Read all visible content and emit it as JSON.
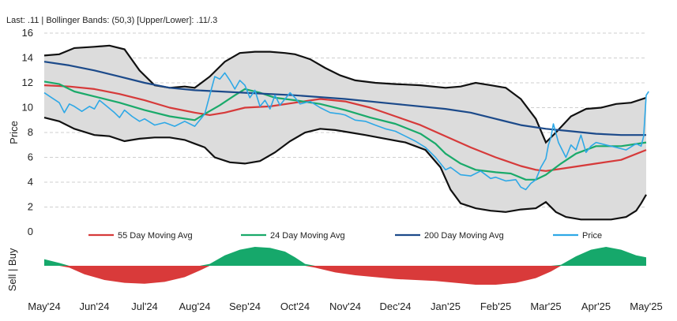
{
  "header": {
    "text": "Last: .11 | Bollinger Bands: (50,3) [Upper/Lower]: .11/.3"
  },
  "chart_data": {
    "type": "line",
    "ylabel": "Price",
    "signal_label": "Sell | Buy",
    "ylim": [
      0,
      16
    ],
    "yticks": [
      0,
      2,
      4,
      6,
      8,
      10,
      12,
      14,
      16
    ],
    "grid": "horizontal dashed",
    "legend_position": "bottom",
    "x_range": [
      0,
      12
    ],
    "x_tick_labels": [
      "May'24",
      "Jun'24",
      "Jul'24",
      "Aug'24",
      "Sep'24",
      "Oct'24",
      "Nov'24",
      "Dec'24",
      "Jan'25",
      "Feb'25",
      "Mar'25",
      "Apr'25",
      "May'25"
    ],
    "x_ticks": [
      0,
      1,
      2,
      3,
      4,
      5,
      6,
      7,
      8,
      9,
      10,
      11,
      12
    ],
    "series": [
      {
        "name": "55 Day Moving Avg",
        "color": "#d63a3a",
        "points": [
          [
            0,
            11.8
          ],
          [
            0.5,
            11.7
          ],
          [
            1,
            11.5
          ],
          [
            1.5,
            11.1
          ],
          [
            2,
            10.6
          ],
          [
            2.5,
            10.0
          ],
          [
            3,
            9.6
          ],
          [
            3.3,
            9.4
          ],
          [
            3.6,
            9.6
          ],
          [
            4,
            10.0
          ],
          [
            4.5,
            10.1
          ],
          [
            5,
            10.4
          ],
          [
            5.5,
            10.7
          ],
          [
            6,
            10.5
          ],
          [
            6.5,
            10.0
          ],
          [
            7,
            9.3
          ],
          [
            7.5,
            8.6
          ],
          [
            8,
            7.7
          ],
          [
            8.5,
            6.8
          ],
          [
            9,
            6.0
          ],
          [
            9.5,
            5.3
          ],
          [
            9.8,
            5.0
          ],
          [
            10,
            4.9
          ],
          [
            10.5,
            5.2
          ],
          [
            11,
            5.5
          ],
          [
            11.5,
            5.8
          ],
          [
            12,
            6.6
          ]
        ]
      },
      {
        "name": "24 Day Moving Avg",
        "color": "#1aaa6a",
        "points": [
          [
            0,
            12.1
          ],
          [
            0.3,
            11.9
          ],
          [
            0.6,
            11.3
          ],
          [
            1,
            10.9
          ],
          [
            1.5,
            10.4
          ],
          [
            2,
            9.8
          ],
          [
            2.5,
            9.3
          ],
          [
            3,
            9.0
          ],
          [
            3.2,
            9.5
          ],
          [
            3.5,
            10.2
          ],
          [
            3.8,
            11.0
          ],
          [
            4,
            11.5
          ],
          [
            4.3,
            11.2
          ],
          [
            4.6,
            10.8
          ],
          [
            5,
            10.6
          ],
          [
            5.5,
            10.3
          ],
          [
            6,
            9.8
          ],
          [
            6.5,
            9.2
          ],
          [
            7,
            8.7
          ],
          [
            7.5,
            7.9
          ],
          [
            7.8,
            7.1
          ],
          [
            8,
            6.3
          ],
          [
            8.3,
            5.5
          ],
          [
            8.6,
            5.0
          ],
          [
            9,
            4.8
          ],
          [
            9.3,
            4.7
          ],
          [
            9.6,
            4.2
          ],
          [
            9.8,
            4.2
          ],
          [
            10,
            4.6
          ],
          [
            10.3,
            5.5
          ],
          [
            10.6,
            6.3
          ],
          [
            11,
            6.9
          ],
          [
            11.5,
            6.9
          ],
          [
            12,
            7.2
          ]
        ]
      },
      {
        "name": "200 Day Moving Avg",
        "color": "#1c4a8a",
        "points": [
          [
            0,
            13.7
          ],
          [
            0.5,
            13.4
          ],
          [
            1,
            13.0
          ],
          [
            1.5,
            12.5
          ],
          [
            2,
            12.0
          ],
          [
            2.5,
            11.6
          ],
          [
            3,
            11.4
          ],
          [
            4,
            11.2
          ],
          [
            5,
            11.0
          ],
          [
            6,
            10.7
          ],
          [
            7,
            10.3
          ],
          [
            8,
            9.9
          ],
          [
            8.5,
            9.6
          ],
          [
            9,
            9.1
          ],
          [
            9.5,
            8.6
          ],
          [
            10,
            8.3
          ],
          [
            10.5,
            8.1
          ],
          [
            11,
            7.9
          ],
          [
            11.5,
            7.8
          ],
          [
            12,
            7.8
          ]
        ]
      },
      {
        "name": "Price",
        "color": "#2ea8e6",
        "points": [
          [
            0,
            11.2
          ],
          [
            0.15,
            10.8
          ],
          [
            0.3,
            10.4
          ],
          [
            0.4,
            9.6
          ],
          [
            0.5,
            10.3
          ],
          [
            0.6,
            10.1
          ],
          [
            0.75,
            9.7
          ],
          [
            0.9,
            10.1
          ],
          [
            1,
            9.9
          ],
          [
            1.1,
            10.6
          ],
          [
            1.25,
            10.1
          ],
          [
            1.4,
            9.6
          ],
          [
            1.5,
            9.2
          ],
          [
            1.6,
            9.8
          ],
          [
            1.75,
            9.3
          ],
          [
            1.9,
            8.9
          ],
          [
            2,
            9.1
          ],
          [
            2.2,
            8.6
          ],
          [
            2.4,
            8.8
          ],
          [
            2.6,
            8.5
          ],
          [
            2.8,
            8.9
          ],
          [
            3,
            8.5
          ],
          [
            3.1,
            9.0
          ],
          [
            3.2,
            9.5
          ],
          [
            3.3,
            11.0
          ],
          [
            3.4,
            12.5
          ],
          [
            3.5,
            12.3
          ],
          [
            3.6,
            12.8
          ],
          [
            3.7,
            12.2
          ],
          [
            3.8,
            11.5
          ],
          [
            3.9,
            12.2
          ],
          [
            4,
            11.8
          ],
          [
            4.1,
            10.8
          ],
          [
            4.2,
            11.4
          ],
          [
            4.3,
            10.1
          ],
          [
            4.4,
            10.6
          ],
          [
            4.5,
            9.9
          ],
          [
            4.6,
            11.0
          ],
          [
            4.7,
            10.2
          ],
          [
            4.8,
            10.7
          ],
          [
            4.9,
            11.2
          ],
          [
            5,
            10.8
          ],
          [
            5.1,
            10.3
          ],
          [
            5.3,
            10.5
          ],
          [
            5.5,
            10.0
          ],
          [
            5.7,
            9.6
          ],
          [
            5.9,
            9.5
          ],
          [
            6,
            9.4
          ],
          [
            6.2,
            9.0
          ],
          [
            6.4,
            8.9
          ],
          [
            6.6,
            8.6
          ],
          [
            6.8,
            8.3
          ],
          [
            7,
            8.1
          ],
          [
            7.2,
            7.7
          ],
          [
            7.4,
            7.3
          ],
          [
            7.6,
            6.8
          ],
          [
            7.8,
            6.0
          ],
          [
            8,
            5.0
          ],
          [
            8.1,
            5.2
          ],
          [
            8.3,
            4.6
          ],
          [
            8.5,
            4.5
          ],
          [
            8.7,
            4.9
          ],
          [
            8.9,
            4.3
          ],
          [
            9,
            4.4
          ],
          [
            9.2,
            4.1
          ],
          [
            9.4,
            4.2
          ],
          [
            9.5,
            3.6
          ],
          [
            9.6,
            3.4
          ],
          [
            9.7,
            3.9
          ],
          [
            9.8,
            4.2
          ],
          [
            9.9,
            5.2
          ],
          [
            10,
            5.9
          ],
          [
            10.05,
            7.0
          ],
          [
            10.1,
            7.6
          ],
          [
            10.15,
            8.7
          ],
          [
            10.25,
            7.2
          ],
          [
            10.4,
            6.0
          ],
          [
            10.5,
            7.0
          ],
          [
            10.6,
            6.6
          ],
          [
            10.7,
            7.8
          ],
          [
            10.8,
            6.4
          ],
          [
            10.9,
            6.9
          ],
          [
            11,
            7.2
          ],
          [
            11.2,
            7.0
          ],
          [
            11.4,
            6.8
          ],
          [
            11.6,
            6.6
          ],
          [
            11.8,
            7.1
          ],
          [
            11.9,
            6.9
          ],
          [
            11.95,
            7.7
          ],
          [
            12,
            11.0
          ],
          [
            12.05,
            11.3
          ]
        ]
      }
    ],
    "bands": {
      "upper": [
        [
          0,
          14.2
        ],
        [
          0.3,
          14.3
        ],
        [
          0.6,
          14.8
        ],
        [
          1,
          14.9
        ],
        [
          1.3,
          15.0
        ],
        [
          1.6,
          14.7
        ],
        [
          1.9,
          13.0
        ],
        [
          2.2,
          11.8
        ],
        [
          2.5,
          11.6
        ],
        [
          2.8,
          11.7
        ],
        [
          3,
          11.6
        ],
        [
          3.3,
          12.5
        ],
        [
          3.6,
          13.7
        ],
        [
          3.9,
          14.4
        ],
        [
          4.2,
          14.5
        ],
        [
          4.5,
          14.5
        ],
        [
          4.8,
          14.4
        ],
        [
          5,
          14.3
        ],
        [
          5.3,
          13.9
        ],
        [
          5.6,
          13.2
        ],
        [
          5.9,
          12.6
        ],
        [
          6.2,
          12.2
        ],
        [
          6.6,
          12.0
        ],
        [
          7,
          11.9
        ],
        [
          7.5,
          11.8
        ],
        [
          8,
          11.6
        ],
        [
          8.3,
          11.7
        ],
        [
          8.6,
          12.0
        ],
        [
          8.9,
          11.8
        ],
        [
          9.2,
          11.6
        ],
        [
          9.5,
          10.7
        ],
        [
          9.8,
          9.1
        ],
        [
          10,
          7.2
        ],
        [
          10.2,
          8.0
        ],
        [
          10.5,
          9.3
        ],
        [
          10.8,
          9.9
        ],
        [
          11.1,
          10.0
        ],
        [
          11.4,
          10.3
        ],
        [
          11.7,
          10.4
        ],
        [
          12,
          10.8
        ]
      ],
      "lower": [
        [
          0,
          9.2
        ],
        [
          0.3,
          8.9
        ],
        [
          0.6,
          8.3
        ],
        [
          1,
          7.8
        ],
        [
          1.3,
          7.7
        ],
        [
          1.6,
          7.3
        ],
        [
          1.9,
          7.5
        ],
        [
          2.2,
          7.6
        ],
        [
          2.5,
          7.6
        ],
        [
          2.8,
          7.4
        ],
        [
          3,
          7.1
        ],
        [
          3.2,
          6.8
        ],
        [
          3.4,
          6.0
        ],
        [
          3.7,
          5.6
        ],
        [
          4,
          5.5
        ],
        [
          4.3,
          5.7
        ],
        [
          4.6,
          6.4
        ],
        [
          4.9,
          7.3
        ],
        [
          5.2,
          8.0
        ],
        [
          5.5,
          8.3
        ],
        [
          5.8,
          8.2
        ],
        [
          6.1,
          8.0
        ],
        [
          6.4,
          7.8
        ],
        [
          6.8,
          7.5
        ],
        [
          7.2,
          7.2
        ],
        [
          7.6,
          6.6
        ],
        [
          7.9,
          5.2
        ],
        [
          8.1,
          3.4
        ],
        [
          8.3,
          2.3
        ],
        [
          8.6,
          1.9
        ],
        [
          8.9,
          1.7
        ],
        [
          9.2,
          1.6
        ],
        [
          9.5,
          1.8
        ],
        [
          9.8,
          1.9
        ],
        [
          10,
          2.4
        ],
        [
          10.2,
          1.6
        ],
        [
          10.4,
          1.2
        ],
        [
          10.7,
          1.0
        ],
        [
          11,
          1.0
        ],
        [
          11.3,
          1.0
        ],
        [
          11.6,
          1.2
        ],
        [
          11.8,
          1.7
        ],
        [
          11.9,
          2.3
        ],
        [
          12,
          3.0
        ]
      ],
      "color": "#dcdcdc",
      "line_color": "#111111"
    },
    "signal": {
      "buy_color": "#16a86b",
      "sell_color": "#d93a3a",
      "points": [
        [
          0,
          0.35
        ],
        [
          0.3,
          0.15
        ],
        [
          0.5,
          -0.1
        ],
        [
          0.8,
          -0.45
        ],
        [
          1.2,
          -0.75
        ],
        [
          1.6,
          -0.9
        ],
        [
          2,
          -0.95
        ],
        [
          2.4,
          -0.85
        ],
        [
          2.8,
          -0.6
        ],
        [
          3.1,
          -0.25
        ],
        [
          3.3,
          0.1
        ],
        [
          3.6,
          0.55
        ],
        [
          3.9,
          0.85
        ],
        [
          4.2,
          1.0
        ],
        [
          4.5,
          0.95
        ],
        [
          4.8,
          0.75
        ],
        [
          5.0,
          0.45
        ],
        [
          5.2,
          0.1
        ],
        [
          5.4,
          -0.1
        ],
        [
          5.8,
          -0.35
        ],
        [
          6.2,
          -0.5
        ],
        [
          6.6,
          -0.6
        ],
        [
          7,
          -0.7
        ],
        [
          7.4,
          -0.75
        ],
        [
          7.8,
          -0.8
        ],
        [
          8.2,
          -0.9
        ],
        [
          8.6,
          -1.0
        ],
        [
          9,
          -1.0
        ],
        [
          9.4,
          -0.9
        ],
        [
          9.8,
          -0.65
        ],
        [
          10.1,
          -0.3
        ],
        [
          10.3,
          0.05
        ],
        [
          10.6,
          0.5
        ],
        [
          10.9,
          0.85
        ],
        [
          11.2,
          1.0
        ],
        [
          11.5,
          0.85
        ],
        [
          11.8,
          0.55
        ],
        [
          12,
          0.45
        ]
      ]
    }
  }
}
